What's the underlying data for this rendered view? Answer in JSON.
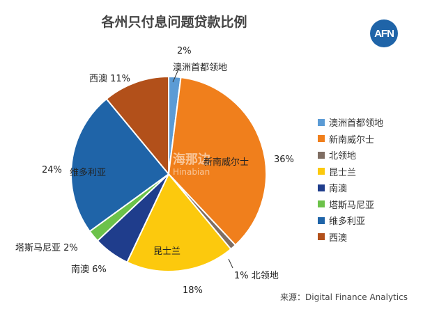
{
  "chart_data": {
    "type": "pie",
    "title": "各州只付息问题贷款比例",
    "categories": [
      "澳洲首都领地",
      "新南威尔士",
      "北领地",
      "昆士兰",
      "南澳",
      "塔斯马尼亚",
      "维多利亚",
      "西澳"
    ],
    "values": [
      2,
      36,
      1,
      18,
      6,
      2,
      24,
      11
    ],
    "value_labels": [
      "2%",
      "36%",
      "1%",
      "18%",
      "6%",
      "2%",
      "24%",
      "11%"
    ],
    "colors": [
      "#5b9bd5",
      "#f07f1c",
      "#7f6e63",
      "#fcc90d",
      "#1f3d8c",
      "#6cc24a",
      "#1f64a8",
      "#b2501a"
    ],
    "legend_position": "right",
    "start": "top-clockwise"
  },
  "logo": "AFN",
  "watermark": {
    "cn": "海那边",
    "en": "Hinabian"
  },
  "source": "来源：Digital Finance Analytics"
}
